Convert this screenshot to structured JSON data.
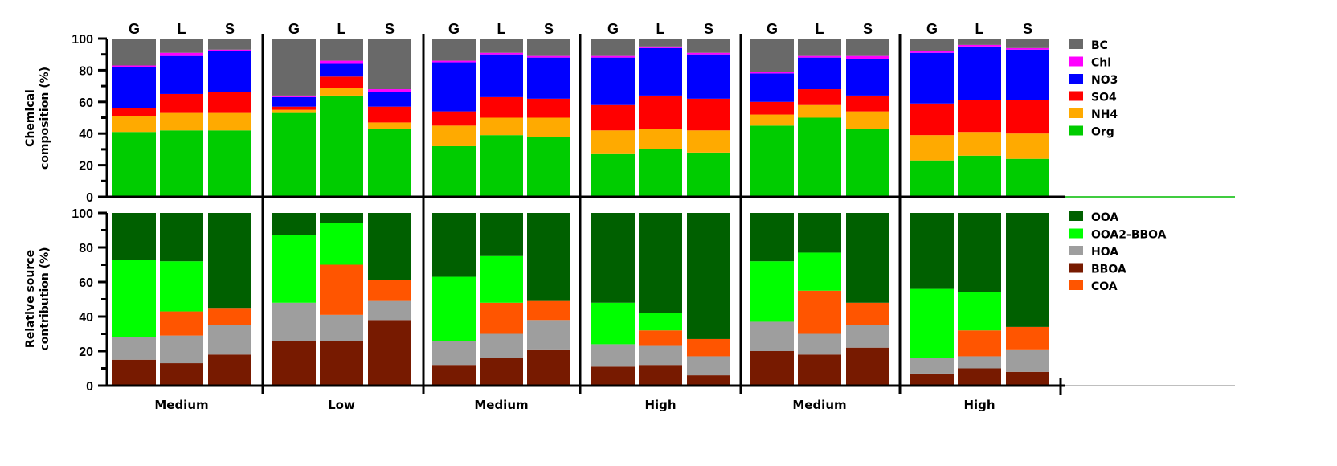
{
  "chart_data": [
    {
      "type": "bar",
      "stacked": true,
      "ylabel": "Chemical composition (%)",
      "ylim": [
        0,
        100
      ],
      "yticks": [
        "0",
        "20",
        "40",
        "60",
        "80",
        "100"
      ],
      "categories": [
        "G",
        "L",
        "S",
        "G",
        "L",
        "S",
        "G",
        "L",
        "S",
        "G",
        "L",
        "S",
        "G",
        "L",
        "S",
        "G",
        "L",
        "S"
      ],
      "groups": [
        "Medium",
        "Low",
        "Medium",
        "High",
        "Medium",
        "High"
      ],
      "legend_position": "right",
      "series": [
        {
          "name": "Org",
          "color": "#00cc00",
          "values": [
            41,
            42,
            42,
            53,
            64,
            43,
            32,
            39,
            38,
            27,
            30,
            28,
            45,
            50,
            43,
            23,
            26,
            24
          ]
        },
        {
          "name": "NH4",
          "color": "#ffaa00",
          "values": [
            10,
            11,
            11,
            2,
            5,
            4,
            13,
            11,
            12,
            15,
            13,
            14,
            7,
            8,
            11,
            16,
            15,
            16
          ]
        },
        {
          "name": "SO4",
          "color": "#ff0000",
          "values": [
            5,
            12,
            13,
            2,
            7,
            10,
            9,
            13,
            12,
            16,
            21,
            20,
            8,
            10,
            10,
            20,
            20,
            21
          ]
        },
        {
          "name": "NO3",
          "color": "#0000ff",
          "values": [
            26,
            24,
            26,
            6,
            8,
            9,
            31,
            27,
            26,
            30,
            30,
            28,
            18,
            20,
            23,
            32,
            34,
            32
          ]
        },
        {
          "name": "Chl",
          "color": "#ff00ff",
          "values": [
            1,
            2,
            1,
            1,
            2,
            2,
            1,
            1,
            1,
            1,
            1,
            1,
            1,
            1,
            2,
            1,
            1,
            1
          ]
        },
        {
          "name": "BC",
          "color": "#696969",
          "values": [
            17,
            9,
            7,
            36,
            14,
            32,
            14,
            9,
            11,
            11,
            5,
            9,
            21,
            11,
            11,
            8,
            4,
            6
          ]
        }
      ]
    },
    {
      "type": "bar",
      "stacked": true,
      "ylabel": "Relative source contribution (%)",
      "ylim": [
        0,
        100
      ],
      "yticks": [
        "0",
        "20",
        "40",
        "60",
        "80",
        "100"
      ],
      "categories": [
        "G",
        "L",
        "S",
        "G",
        "L",
        "S",
        "G",
        "L",
        "S",
        "G",
        "L",
        "S",
        "G",
        "L",
        "S",
        "G",
        "L",
        "S"
      ],
      "groups": [
        "Medium",
        "Low",
        "Medium",
        "High",
        "Medium",
        "High"
      ],
      "legend_position": "right",
      "series": [
        {
          "name": "BBOA",
          "color": "#771a00",
          "values": [
            15,
            13,
            18,
            26,
            26,
            38,
            12,
            16,
            21,
            11,
            12,
            6,
            20,
            18,
            22,
            7,
            10,
            8
          ]
        },
        {
          "name": "HOA",
          "color": "#9e9e9e",
          "values": [
            13,
            16,
            17,
            22,
            15,
            11,
            14,
            14,
            17,
            13,
            11,
            11,
            17,
            12,
            13,
            9,
            7,
            13
          ]
        },
        {
          "name": "COA",
          "color": "#ff5500",
          "values": [
            0,
            14,
            10,
            0,
            29,
            12,
            0,
            18,
            11,
            0,
            9,
            10,
            0,
            25,
            13,
            0,
            15,
            13
          ]
        },
        {
          "name": "OOA2-BBOA",
          "color": "#00ff00",
          "values": [
            45,
            29,
            0,
            39,
            24,
            0,
            37,
            27,
            0,
            24,
            10,
            0,
            35,
            22,
            0,
            40,
            22,
            0
          ]
        },
        {
          "name": "OOA",
          "color": "#006000",
          "values": [
            27,
            28,
            55,
            13,
            6,
            39,
            37,
            25,
            51,
            52,
            58,
            73,
            28,
            23,
            52,
            44,
            46,
            66
          ]
        }
      ],
      "legend_order": [
        "OOA",
        "OOA2-BBOA",
        "HOA",
        "BBOA",
        "COA"
      ]
    }
  ]
}
